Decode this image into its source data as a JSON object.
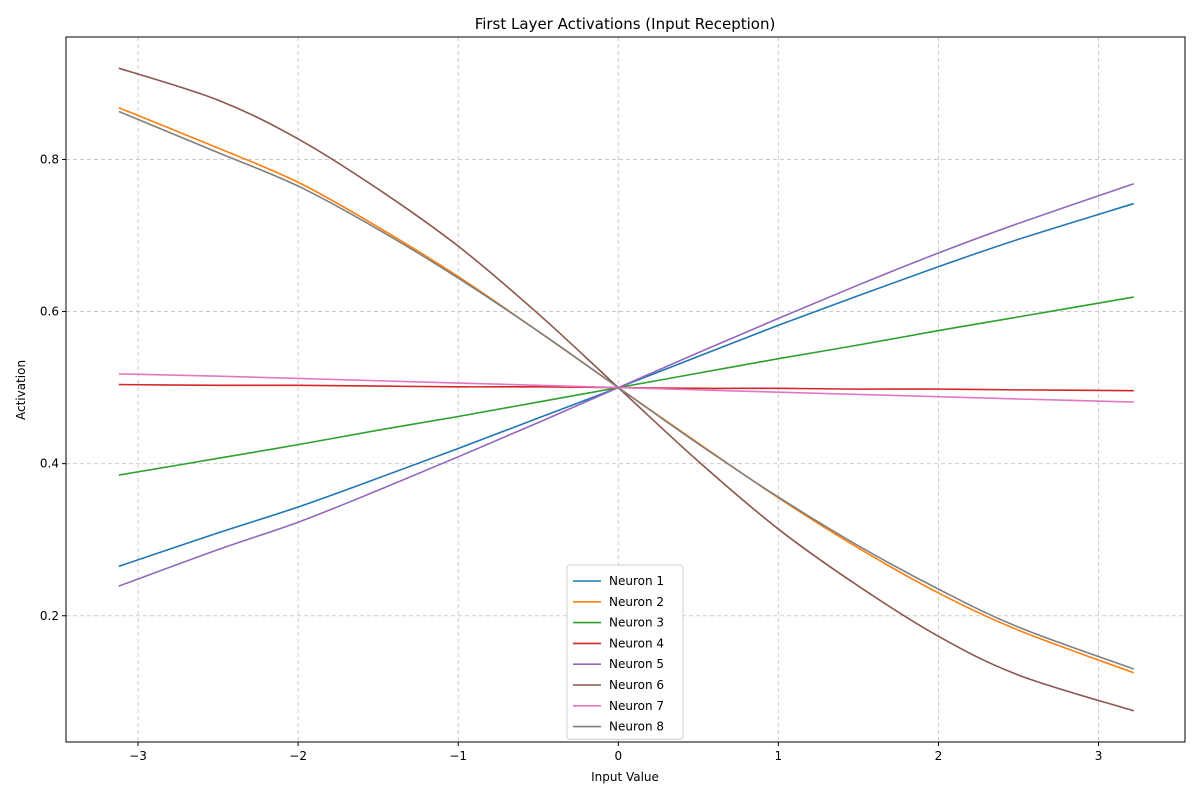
{
  "chart_data": {
    "type": "line",
    "title": "First Layer Activations (Input Reception)",
    "xlabel": "Input Value",
    "ylabel": "Activation",
    "xlim": [
      -3.45,
      3.54
    ],
    "ylim": [
      0.034,
      0.961
    ],
    "xticks": [
      -3,
      -2,
      -1,
      0,
      1,
      2,
      3
    ],
    "xtick_labels": [
      "−3",
      "−2",
      "−1",
      "0",
      "1",
      "2",
      "3"
    ],
    "yticks": [
      0.2,
      0.4,
      0.6,
      0.8
    ],
    "ytick_labels": [
      "0.2",
      "0.4",
      "0.6",
      "0.8"
    ],
    "grid": true,
    "legend_position": "bottom-center",
    "x": [
      -3.12,
      -2.5,
      -2.0,
      -1.5,
      -1.0,
      -0.5,
      0.0,
      0.5,
      1.0,
      1.5,
      2.0,
      2.5,
      3.22
    ],
    "series": [
      {
        "name": "Neuron 1",
        "color": "#1f77b4",
        "values": [
          0.265,
          0.309,
          0.343,
          0.381,
          0.42,
          0.46,
          0.5,
          0.541,
          0.582,
          0.621,
          0.659,
          0.695,
          0.742
        ]
      },
      {
        "name": "Neuron 2",
        "color": "#ff7f0e",
        "values": [
          0.868,
          0.815,
          0.77,
          0.711,
          0.646,
          0.574,
          0.5,
          0.427,
          0.355,
          0.289,
          0.23,
          0.181,
          0.125
        ]
      },
      {
        "name": "Neuron 3",
        "color": "#2ca02c",
        "values": [
          0.385,
          0.407,
          0.425,
          0.444,
          0.462,
          0.481,
          0.5,
          0.519,
          0.538,
          0.556,
          0.575,
          0.593,
          0.619
        ]
      },
      {
        "name": "Neuron 4",
        "color": "#d62728",
        "values": [
          0.504,
          0.503,
          0.503,
          0.502,
          0.501,
          0.501,
          0.5,
          0.499,
          0.499,
          0.498,
          0.498,
          0.497,
          0.496
        ]
      },
      {
        "name": "Neuron 5",
        "color": "#9467bd",
        "values": [
          0.239,
          0.287,
          0.323,
          0.365,
          0.409,
          0.454,
          0.5,
          0.546,
          0.591,
          0.635,
          0.677,
          0.716,
          0.768
        ]
      },
      {
        "name": "Neuron 6",
        "color": "#8c564b",
        "values": [
          0.92,
          0.878,
          0.827,
          0.761,
          0.686,
          0.597,
          0.5,
          0.403,
          0.314,
          0.239,
          0.173,
          0.122,
          0.075
        ]
      },
      {
        "name": "Neuron 7",
        "color": "#e377c2",
        "values": [
          0.518,
          0.515,
          0.512,
          0.509,
          0.506,
          0.503,
          0.5,
          0.497,
          0.494,
          0.491,
          0.488,
          0.485,
          0.481
        ]
      },
      {
        "name": "Neuron 8",
        "color": "#7f7f7f",
        "values": [
          0.863,
          0.809,
          0.765,
          0.708,
          0.644,
          0.574,
          0.5,
          0.426,
          0.356,
          0.292,
          0.235,
          0.185,
          0.13
        ]
      }
    ]
  }
}
